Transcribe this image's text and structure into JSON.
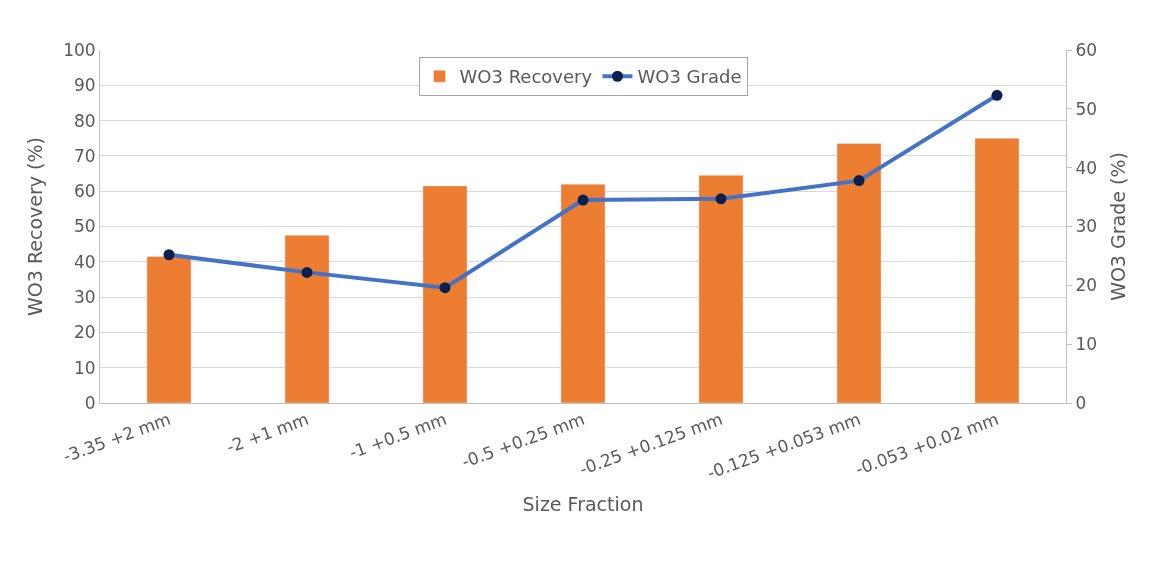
{
  "chart_data": {
    "type": "bar",
    "xlabel": "Size Fraction",
    "ylabel": "WO3 Recovery (%)",
    "y2label": "WO3 Grade (%)",
    "categories": [
      "-3.35 +2 mm",
      "-2 +1 mm",
      "-1 +0.5 mm",
      "-0.5 +0.25 mm",
      "-0.25 +0.125 mm",
      "-0.125 +0.053 mm",
      "-0.053 +0.02 mm"
    ],
    "series": [
      {
        "name": "WO3 Recovery",
        "color": "#ed7d31",
        "values": [
          41.5,
          47.5,
          61.5,
          62,
          64.5,
          73.5,
          75
        ]
      },
      {
        "name": "WO3 Grade",
        "type": "line",
        "axis": "y2",
        "color": "#4472c4",
        "marker": "circle",
        "values": [
          25.2,
          22.2,
          19.6,
          34.5,
          34.7,
          37.8,
          52.3
        ]
      }
    ],
    "ylim": [
      0,
      100
    ],
    "yticks": [
      0,
      10,
      20,
      30,
      40,
      50,
      60,
      70,
      80,
      90,
      100
    ],
    "y2lim": [
      0,
      60
    ],
    "y2ticks": [
      0,
      10,
      20,
      30,
      40,
      50,
      60
    ],
    "grid": "y",
    "legend": "top"
  }
}
